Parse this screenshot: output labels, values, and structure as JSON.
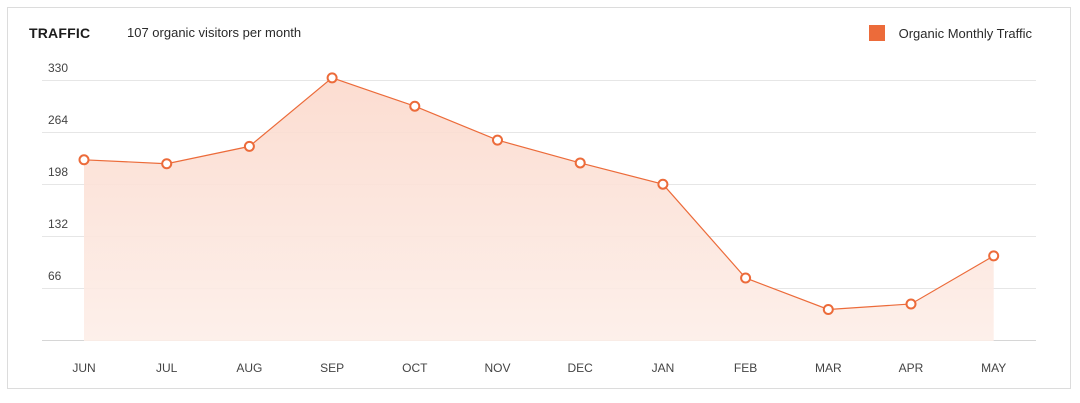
{
  "header": {
    "title": "TRAFFIC",
    "subtitle": "107 organic visitors per month"
  },
  "legend": {
    "label": "Organic Monthly Traffic",
    "color": "#ec6b3a"
  },
  "chart_data": {
    "type": "area",
    "title": "TRAFFIC",
    "subtitle": "107 organic visitors per month",
    "categories": [
      "JUN",
      "JUL",
      "AUG",
      "SEP",
      "OCT",
      "NOV",
      "DEC",
      "JAN",
      "FEB",
      "MAR",
      "APR",
      "MAY"
    ],
    "series": [
      {
        "name": "Organic Monthly Traffic",
        "color": "#ec6b3a",
        "values": [
          230,
          225,
          247,
          334,
          298,
          255,
          226,
          199,
          80,
          40,
          47,
          108
        ]
      }
    ],
    "yticks": [
      66,
      132,
      198,
      264,
      330
    ],
    "ylim": [
      0,
      330
    ],
    "grid": true,
    "legend_position": "top-right",
    "xlabel": "",
    "ylabel": ""
  }
}
